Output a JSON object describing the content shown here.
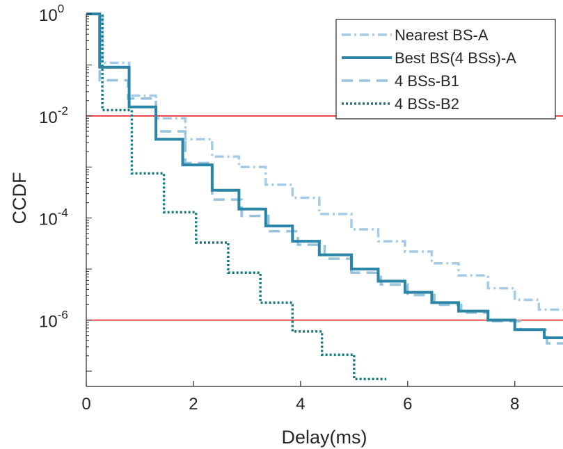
{
  "chart_data": {
    "type": "line",
    "step": true,
    "xlabel": "Delay(ms)",
    "ylabel": "CCDF",
    "xlim": [
      0,
      8.9
    ],
    "ylim_log10": [
      -7.3,
      0
    ],
    "yscale": "log",
    "x_ticks": [
      0,
      2,
      4,
      6,
      8
    ],
    "x_tick_labels": [
      "0",
      "2",
      "4",
      "6",
      "8"
    ],
    "y_ticks": [
      {
        "value": 1,
        "base": "10",
        "exp": "0"
      },
      {
        "value": 0.01,
        "base": "10",
        "exp": "-2"
      },
      {
        "value": 0.0001,
        "base": "10",
        "exp": "-4"
      },
      {
        "value": 1e-06,
        "base": "10",
        "exp": "-6"
      }
    ],
    "legend_position": "top-right",
    "reference_lines": [
      {
        "y": 0.01,
        "color": "#e8141e"
      },
      {
        "y": 1e-06,
        "color": "#e8141e"
      }
    ],
    "series": [
      {
        "name": "Nearest BS-A",
        "color": "#a6cbe6",
        "dash": "dashdot",
        "x": [
          0,
          0.3,
          0.8,
          1.3,
          1.85,
          2.35,
          2.85,
          3.35,
          3.85,
          4.35,
          4.95,
          5.45,
          5.95,
          6.45,
          6.95,
          7.5,
          8.0,
          8.45,
          8.9
        ],
        "y": [
          1.0,
          0.11,
          0.025,
          0.009,
          0.0035,
          0.0016,
          0.001,
          0.00045,
          0.00025,
          0.00012,
          6e-05,
          3.5e-05,
          2.2e-05,
          1.3e-05,
          7.5e-06,
          4.2e-06,
          2.5e-06,
          1.6e-06,
          1.6e-06
        ]
      },
      {
        "name": "Best BS(4 BSs)-A",
        "color": "#2b85a6",
        "dash": "solid",
        "x": [
          0,
          0.25,
          0.8,
          1.3,
          1.8,
          2.35,
          2.85,
          3.35,
          3.85,
          4.35,
          4.95,
          5.45,
          5.95,
          6.45,
          6.95,
          7.5,
          8.0,
          8.55,
          8.9
        ],
        "y": [
          1.0,
          0.09,
          0.015,
          0.0035,
          0.0011,
          0.00035,
          0.00015,
          7e-05,
          3.5e-05,
          1.9e-05,
          1e-05,
          5.8e-06,
          3.5e-06,
          2.2e-06,
          1.5e-06,
          1e-06,
          6.5e-07,
          4.5e-07,
          4.5e-07
        ]
      },
      {
        "name": "4 BSs-B1",
        "color": "#98c3dc",
        "dash": "dashed",
        "x": [
          0,
          0.25,
          0.78,
          1.3,
          1.85,
          2.35,
          2.9,
          3.4,
          3.95,
          4.45,
          4.95,
          5.5,
          6.0,
          6.5,
          7.0,
          7.5,
          8.1,
          8.6,
          8.9
        ],
        "y": [
          1.0,
          0.05,
          0.022,
          0.005,
          0.0012,
          0.00023,
          0.00011,
          5.5e-05,
          3e-05,
          1.6e-05,
          8.5e-06,
          5e-06,
          3.1e-06,
          2e-06,
          1.4e-06,
          9.5e-07,
          6.5e-07,
          3.5e-07,
          3.5e-07
        ]
      },
      {
        "name": "4 BSs-B2",
        "color": "#167a80",
        "dash": "dotted",
        "x": [
          0,
          0.3,
          0.85,
          1.45,
          2.05,
          2.65,
          3.25,
          3.85,
          4.4,
          5.0,
          5.6
        ],
        "y": [
          1.0,
          0.013,
          0.00075,
          0.00013,
          3.3e-05,
          8.5e-06,
          2.2e-06,
          6e-07,
          2.1e-07,
          7e-08,
          7e-08
        ]
      }
    ]
  }
}
